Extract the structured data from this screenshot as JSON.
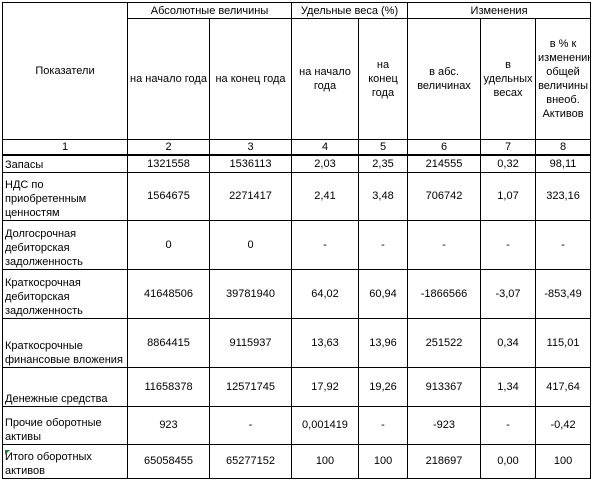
{
  "header": {
    "indicators": "Показатели",
    "groups": [
      "Абсолютные величины",
      "Удельные веса (%)",
      "Изменения"
    ],
    "subcolumns": [
      "на начало года",
      "на конец года",
      "на начало года",
      "на конец года",
      "в абс. величинах",
      "в удельных весах",
      "в % к изменению общей величины внеоб. Активов"
    ],
    "column_numbers": [
      "1",
      "2",
      "3",
      "4",
      "5",
      "6",
      "7",
      "8"
    ]
  },
  "rows": [
    {
      "name": "Запасы",
      "values": [
        "1321558",
        "1536113",
        "2,03",
        "2,35",
        "214555",
        "0,32",
        "98,11"
      ]
    },
    {
      "name": "НДС по приобретенным ценностям",
      "values": [
        "1564675",
        "2271417",
        "2,41",
        "3,48",
        "706742",
        "1,07",
        "323,16"
      ]
    },
    {
      "name": "Долгосрочная дебиторская задолженность",
      "values": [
        "0",
        "0",
        "-",
        "-",
        "-",
        "-",
        "-"
      ]
    },
    {
      "name": "Краткосрочная дебиторская задолженность",
      "values": [
        "41648506",
        "39781940",
        "64,02",
        "60,94",
        "-1866566",
        "-3,07",
        "-853,49"
      ]
    },
    {
      "name": "Краткосрочные финансовые вложения",
      "values": [
        "8864415",
        "9115937",
        "13,63",
        "13,96",
        "251522",
        "0,34",
        "115,01"
      ]
    },
    {
      "name": "Денежные средства",
      "values": [
        "11658378",
        "12571745",
        "17,92",
        "19,26",
        "913367",
        "1,34",
        "417,64"
      ]
    },
    {
      "name": "Прочие оборотные активы",
      "values": [
        "923",
        "-",
        "0,001419",
        "-",
        "-923",
        "-",
        "-0,42"
      ]
    },
    {
      "name": "Итого оборотных активов",
      "values": [
        "65058455",
        "65277152",
        "100",
        "100",
        "218697",
        "0,00",
        "100"
      ]
    }
  ],
  "colors": {
    "cell_marker": "#1e7b34"
  }
}
